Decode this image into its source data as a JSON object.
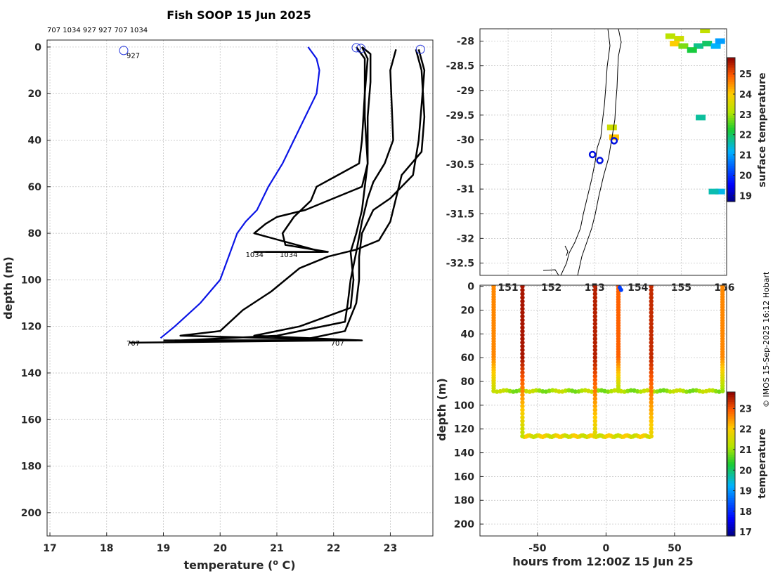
{
  "title": "Fish SOOP 15 Jun 2025",
  "credit": "© IMOS 15-Sep-2025 16:12 Hobart",
  "chart_data": [
    {
      "id": "profiles",
      "type": "line",
      "xlabel": "temperature (",
      "xlabel_sup": "o",
      "xlabel_tail": " C)",
      "ylabel": "depth (m)",
      "xlim": [
        16.95,
        23.75
      ],
      "ylim": [
        210,
        -3
      ],
      "xticks": [
        17,
        18,
        19,
        20,
        21,
        22,
        23
      ],
      "yticks": [
        0,
        20,
        40,
        60,
        80,
        100,
        120,
        140,
        160,
        180,
        200
      ],
      "header_ids": "707 1034 927 927 707 1034",
      "blue_profile": [
        [
          21.55,
          0
        ],
        [
          21.7,
          5
        ],
        [
          21.75,
          10
        ],
        [
          21.7,
          20
        ],
        [
          21.5,
          30
        ],
        [
          21.3,
          40
        ],
        [
          21.1,
          50
        ],
        [
          20.85,
          60
        ],
        [
          20.65,
          70
        ],
        [
          20.45,
          75
        ],
        [
          20.3,
          80
        ],
        [
          20.15,
          90
        ],
        [
          20.0,
          100
        ],
        [
          19.65,
          110
        ],
        [
          19.2,
          120
        ],
        [
          18.95,
          125
        ]
      ],
      "black_profiles": [
        [
          [
            22.5,
            0
          ],
          [
            22.65,
            3
          ],
          [
            22.65,
            15
          ],
          [
            22.6,
            30
          ],
          [
            22.6,
            50
          ],
          [
            22.5,
            60
          ],
          [
            22.0,
            65
          ],
          [
            21.5,
            70
          ],
          [
            21.0,
            73
          ],
          [
            20.8,
            76
          ],
          [
            20.6,
            80
          ],
          [
            21.8,
            88
          ],
          [
            20.6,
            88
          ],
          [
            21.0,
            88
          ]
        ],
        [
          [
            22.5,
            0
          ],
          [
            22.6,
            5
          ],
          [
            22.55,
            20
          ],
          [
            22.5,
            40
          ],
          [
            22.45,
            50
          ],
          [
            22.0,
            56
          ],
          [
            21.7,
            60
          ],
          [
            21.6,
            66
          ],
          [
            21.3,
            73
          ],
          [
            21.1,
            80
          ],
          [
            21.15,
            85
          ],
          [
            21.9,
            88
          ],
          [
            20.8,
            88
          ]
        ],
        [
          [
            23.1,
            1
          ],
          [
            23.0,
            10
          ],
          [
            23.05,
            40
          ],
          [
            22.9,
            50
          ],
          [
            22.7,
            58
          ],
          [
            22.6,
            65
          ],
          [
            22.5,
            75
          ],
          [
            22.4,
            88
          ],
          [
            22.3,
            100
          ],
          [
            22.25,
            110
          ],
          [
            22.2,
            118
          ],
          [
            21.0,
            124
          ],
          [
            19.3,
            126
          ],
          [
            22.0,
            126
          ],
          [
            19.0,
            126
          ]
        ],
        [
          [
            23.5,
            1
          ],
          [
            23.6,
            10
          ],
          [
            23.55,
            25
          ],
          [
            23.5,
            40
          ],
          [
            23.4,
            55
          ],
          [
            23.0,
            65
          ],
          [
            22.7,
            70
          ],
          [
            22.5,
            80
          ],
          [
            22.45,
            90
          ],
          [
            22.45,
            100
          ],
          [
            22.4,
            110
          ],
          [
            22.2,
            122
          ],
          [
            21.4,
            126
          ],
          [
            19.5,
            126
          ],
          [
            22.1,
            126
          ],
          [
            18.4,
            127
          ]
        ],
        [
          [
            22.4,
            0
          ],
          [
            22.55,
            5
          ],
          [
            22.55,
            30
          ],
          [
            22.6,
            50
          ],
          [
            22.55,
            60
          ],
          [
            22.5,
            70
          ],
          [
            22.4,
            80
          ],
          [
            22.3,
            88
          ],
          [
            22.35,
            100
          ],
          [
            22.3,
            112
          ],
          [
            21.4,
            120
          ],
          [
            20.6,
            124
          ],
          [
            22.5,
            126
          ],
          [
            19.8,
            126
          ]
        ],
        [
          [
            23.45,
            1
          ],
          [
            23.55,
            10
          ],
          [
            23.6,
            30
          ],
          [
            23.55,
            45
          ],
          [
            23.2,
            55
          ],
          [
            23.1,
            65
          ],
          [
            23.0,
            75
          ],
          [
            22.8,
            83
          ],
          [
            22.4,
            87
          ],
          [
            21.9,
            90
          ],
          [
            21.4,
            95
          ],
          [
            20.9,
            105
          ],
          [
            20.4,
            113
          ],
          [
            20.0,
            122
          ],
          [
            19.3,
            124
          ],
          [
            22.4,
            126
          ],
          [
            19.2,
            126
          ]
        ]
      ],
      "circles": [
        [
          18.3,
          1.5
        ],
        [
          22.4,
          0.3
        ],
        [
          22.48,
          0.6
        ],
        [
          23.53,
          1
        ]
      ],
      "annotations": [
        {
          "text": "927",
          "x": 18.35,
          "y": 3.5
        },
        {
          "text": "1034",
          "x": 20.45,
          "y": 89
        },
        {
          "text": "1034",
          "x": 21.05,
          "y": 89
        },
        {
          "text": "707",
          "x": 18.35,
          "y": 127
        },
        {
          "text": "707",
          "x": 21.95,
          "y": 127
        }
      ]
    },
    {
      "id": "map",
      "type": "heatmap",
      "xlim": [
        150.35,
        156.05
      ],
      "ylim": [
        -32.75,
        -27.75
      ],
      "xticks": [
        151,
        152,
        153,
        154,
        155,
        156
      ],
      "yticks": [
        -28,
        -28.5,
        -29,
        -29.5,
        -30,
        -30.5,
        -31,
        -31.5,
        -32,
        -32.5
      ],
      "yticklabels": [
        "-28",
        "-28.5",
        "-29",
        "-29.5",
        "-30",
        "-30.5",
        "-31",
        "-31.5",
        "-32",
        "-32.5"
      ],
      "colorbar_label": "surface temperature",
      "colorbar_range": [
        18.7,
        25.8
      ],
      "colorbar_ticks": [
        19,
        20,
        21,
        22,
        23,
        24,
        25
      ],
      "stations": [
        [
          152.95,
          -30.3
        ],
        [
          153.12,
          -30.42
        ],
        [
          153.45,
          -30.02
        ]
      ],
      "sst_patches": [
        {
          "lon": 154.75,
          "lat": -27.9,
          "temp": 23.2
        },
        {
          "lon": 154.95,
          "lat": -27.95,
          "temp": 23.4
        },
        {
          "lon": 154.85,
          "lat": -28.05,
          "temp": 24.0
        },
        {
          "lon": 155.05,
          "lat": -28.1,
          "temp": 22.8
        },
        {
          "lon": 155.4,
          "lat": -28.1,
          "temp": 21.8
        },
        {
          "lon": 155.6,
          "lat": -28.05,
          "temp": 22.0
        },
        {
          "lon": 155.8,
          "lat": -28.1,
          "temp": 21.2
        },
        {
          "lon": 155.9,
          "lat": -28.0,
          "temp": 21.0
        },
        {
          "lon": 155.25,
          "lat": -28.18,
          "temp": 22.2
        },
        {
          "lon": 155.55,
          "lat": -27.78,
          "temp": 23.3
        },
        {
          "lon": 155.45,
          "lat": -29.55,
          "temp": 21.7
        },
        {
          "lon": 155.9,
          "lat": -31.05,
          "temp": 21.3
        },
        {
          "lon": 155.75,
          "lat": -31.05,
          "temp": 21.6
        },
        {
          "lon": 153.4,
          "lat": -29.75,
          "temp": 23.4
        },
        {
          "lon": 153.45,
          "lat": -29.95,
          "temp": 24.1
        }
      ]
    },
    {
      "id": "section",
      "type": "scatter",
      "xlabel": "hours from 12:00Z 15 Jun 25",
      "ylabel": "depth (m)",
      "xlim": [
        -92,
        88
      ],
      "ylim": [
        210,
        -1
      ],
      "xticks": [
        -50,
        0,
        50
      ],
      "yticks": [
        0,
        20,
        40,
        60,
        80,
        100,
        120,
        140,
        160,
        180,
        200
      ],
      "colorbar_label": "temperature",
      "colorbar_range": [
        16.8,
        23.8
      ],
      "colorbar_ticks": [
        17,
        18,
        19,
        20,
        21,
        22,
        23
      ],
      "casts": [
        {
          "x": -82,
          "max_depth": 88,
          "surface_temp": 22.6,
          "bottom_temp": 21.4
        },
        {
          "x": -61,
          "max_depth": 126,
          "surface_temp": 23.6,
          "bottom_temp": 21.3
        },
        {
          "x": -8,
          "max_depth": 126,
          "surface_temp": 23.5,
          "bottom_temp": 21.6
        },
        {
          "x": 9,
          "max_depth": 88,
          "surface_temp": 22.9,
          "bottom_temp": 21.2
        },
        {
          "x": 33,
          "max_depth": 126,
          "surface_temp": 23.4,
          "bottom_temp": 21.8
        },
        {
          "x": 85,
          "max_depth": 88,
          "surface_temp": 22.6,
          "bottom_temp": 21.0
        }
      ],
      "bottom_runs": [
        {
          "x0": -82,
          "x1": 85,
          "depth": 88,
          "temp": 21.1
        },
        {
          "x0": -61,
          "x1": 33,
          "depth": 126,
          "temp": 21.7
        }
      ],
      "cold_marks": [
        [
          10,
          1
        ],
        [
          11,
          3
        ]
      ]
    }
  ]
}
